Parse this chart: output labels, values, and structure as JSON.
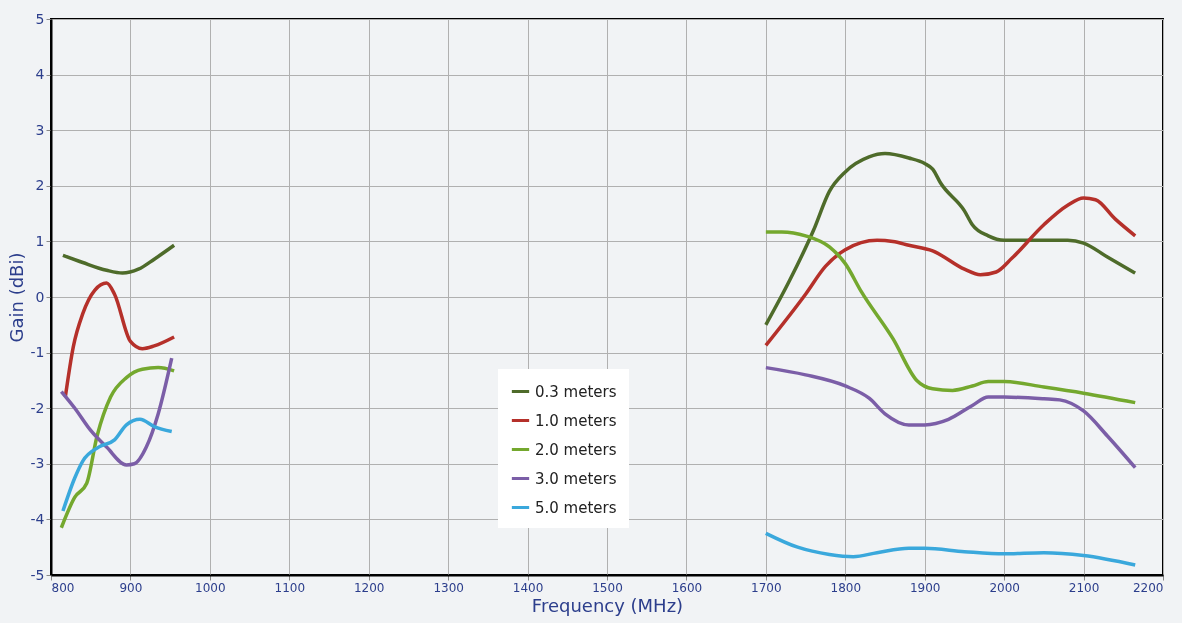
{
  "chart_data": {
    "type": "line",
    "xlabel": "Frequency (MHz)",
    "ylabel": "Gain (dBi)",
    "xlim": [
      800,
      2200
    ],
    "ylim": [
      -5,
      5
    ],
    "xticks": [
      800,
      900,
      1000,
      1100,
      1200,
      1300,
      1400,
      1500,
      1600,
      1700,
      1800,
      1900,
      2000,
      2100,
      2200
    ],
    "yticks": [
      -5,
      -4,
      -3,
      -2,
      -1,
      0,
      1,
      2,
      3,
      4,
      5
    ],
    "grid": true,
    "legend": "bottom",
    "marker": "none",
    "line_style": "solid",
    "series": [
      {
        "name": "0.3 meters",
        "color": "#4e6b2a",
        "x": [
          815,
          840,
          870,
          890,
          910,
          930,
          955,
          1300,
          1700,
          1730,
          1760,
          1780,
          1800,
          1830,
          1850,
          1880,
          1900,
          1910,
          1920,
          1950,
          1960,
          1980,
          2000,
          2050,
          2080,
          2100,
          2130,
          2165
        ],
        "values": [
          0.75,
          0.62,
          0.48,
          0.43,
          0.5,
          0.68,
          0.93,
          null,
          -0.5,
          0.3,
          1.2,
          1.9,
          2.25,
          2.52,
          2.58,
          2.5,
          2.4,
          2.3,
          2.05,
          1.55,
          1.3,
          1.1,
          1.02,
          1.02,
          1.02,
          0.97,
          0.72,
          0.43
        ]
      },
      {
        "name": "1.0 meters",
        "color": "#b5302a",
        "x": [
          818,
          828,
          840,
          855,
          870,
          880,
          900,
          915,
          930,
          955,
          1300,
          1700,
          1750,
          1775,
          1800,
          1840,
          1860,
          1880,
          1910,
          1950,
          1970,
          1990,
          2010,
          2050,
          2080,
          2100,
          2115,
          2140,
          2165
        ],
        "values": [
          -1.8,
          -0.9,
          -0.3,
          0.12,
          0.25,
          0.05,
          -0.8,
          -0.93,
          -0.88,
          -0.72,
          null,
          -0.87,
          0.05,
          0.55,
          0.85,
          1.02,
          1.0,
          0.93,
          0.83,
          0.5,
          0.4,
          0.45,
          0.7,
          1.3,
          1.65,
          1.78,
          1.75,
          1.4,
          1.1
        ]
      },
      {
        "name": "2.0 meters",
        "color": "#74a82e",
        "x": [
          813,
          830,
          845,
          858,
          875,
          895,
          915,
          935,
          955,
          1300,
          1700,
          1720,
          1750,
          1780,
          1800,
          1820,
          1860,
          1890,
          1910,
          1935,
          1960,
          1980,
          2000,
          2050,
          2100,
          2165
        ],
        "values": [
          -4.15,
          -3.6,
          -3.35,
          -2.5,
          -1.8,
          -1.45,
          -1.3,
          -1.27,
          -1.33,
          null,
          1.17,
          1.17,
          1.1,
          0.9,
          0.6,
          0.1,
          -0.75,
          -1.5,
          -1.65,
          -1.68,
          -1.6,
          -1.52,
          -1.52,
          -1.62,
          -1.73,
          -1.9
        ]
      },
      {
        "name": "3.0 meters",
        "color": "#7b5ea7",
        "x": [
          813,
          830,
          850,
          870,
          895,
          905,
          920,
          935,
          952,
          1300,
          1700,
          1750,
          1800,
          1830,
          1850,
          1880,
          1900,
          1930,
          1960,
          1980,
          2000,
          2050,
          2070,
          2100,
          2130,
          2165
        ],
        "values": [
          -1.7,
          -2.0,
          -2.4,
          -2.7,
          -3.02,
          -3.0,
          -2.7,
          -2.1,
          -1.1,
          null,
          -1.27,
          -1.4,
          -1.6,
          -1.82,
          -2.1,
          -2.3,
          -2.3,
          -2.2,
          -1.95,
          -1.8,
          -1.8,
          -1.83,
          -1.85,
          -2.05,
          -2.5,
          -3.07
        ]
      },
      {
        "name": "5.0 meters",
        "color": "#3aa8dc",
        "x": [
          815,
          830,
          840,
          860,
          880,
          895,
          912,
          930,
          952,
          1300,
          1700,
          1740,
          1780,
          1810,
          1840,
          1880,
          1900,
          1950,
          2000,
          2050,
          2100,
          2165
        ],
        "values": [
          -3.85,
          -3.25,
          -2.95,
          -2.7,
          -2.57,
          -2.3,
          -2.2,
          -2.33,
          -2.42,
          null,
          -4.25,
          -4.5,
          -4.63,
          -4.67,
          -4.6,
          -4.52,
          -4.52,
          -4.58,
          -4.62,
          -4.6,
          -4.65,
          -4.82
        ]
      }
    ]
  }
}
